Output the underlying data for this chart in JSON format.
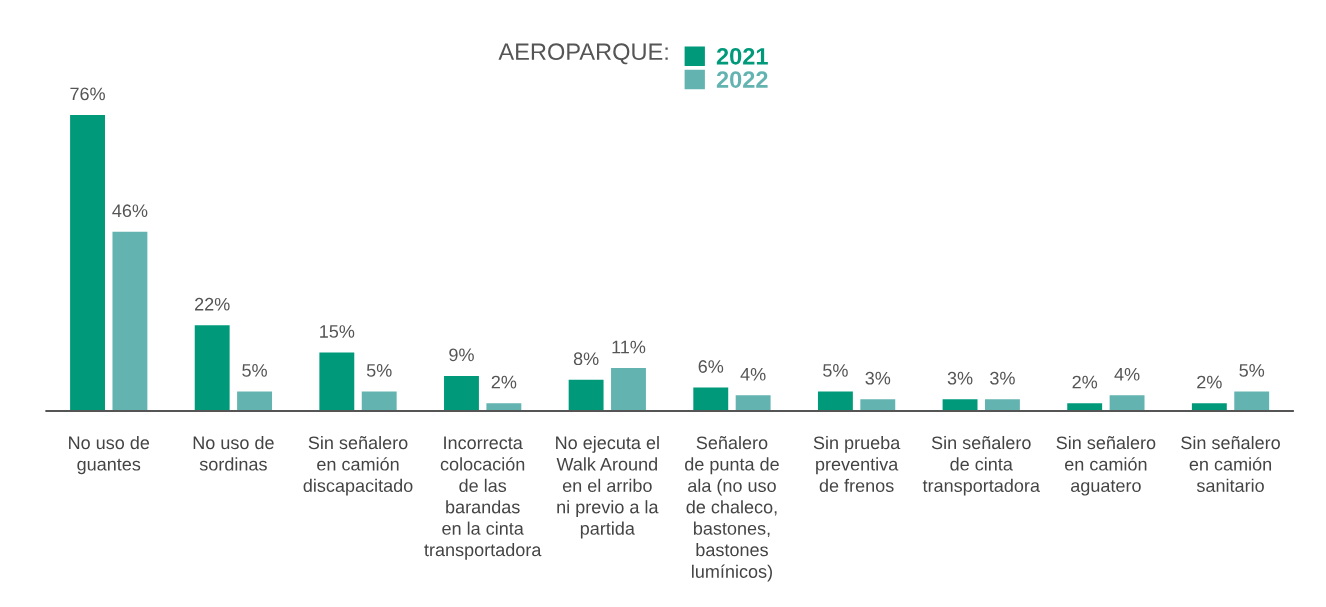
{
  "chart_data": {
    "type": "bar",
    "legend_title": "AEROPARQUE:",
    "legend": "top",
    "grid": false,
    "tick_labels": "x",
    "categories": [
      "No uso de\nguantes",
      "No uso de\nsordinas",
      "Sin señalero\nen camión\ndiscapacitado",
      "Incorrecta\ncolocación\nde las\nbarandas\nen la cinta\ntransportadora",
      "No ejecuta el\nWalk Around\nen el arribo\nni previo a la\npartida",
      "Señalero\nde punta de\nala (no uso\nde chaleco,\nbastones,\nbastones\nlumínicos)",
      "Sin prueba\npreventiva\nde frenos",
      "Sin señalero\nde cinta\ntransportadora",
      "Sin señalero\nen camión\naguatero",
      "Sin señalero\nen camión\nsanitario"
    ],
    "series": [
      {
        "name": "2021",
        "color": "#009a7b",
        "values": [
          76,
          22,
          15,
          9,
          8,
          6,
          5,
          3,
          2,
          2
        ],
        "value_labels": [
          "76%",
          "22%",
          "15%",
          "9%",
          "8%",
          "6%",
          "5%",
          "3%",
          "2%",
          "2%"
        ]
      },
      {
        "name": "2022",
        "color": "#63b4b1",
        "values": [
          46,
          5,
          5,
          2,
          11,
          4,
          3,
          3,
          4,
          5
        ],
        "value_labels": [
          "46%",
          "5%",
          "5%",
          "2%",
          "11%",
          "4%",
          "3%",
          "3%",
          "4%",
          "5%"
        ]
      }
    ]
  }
}
